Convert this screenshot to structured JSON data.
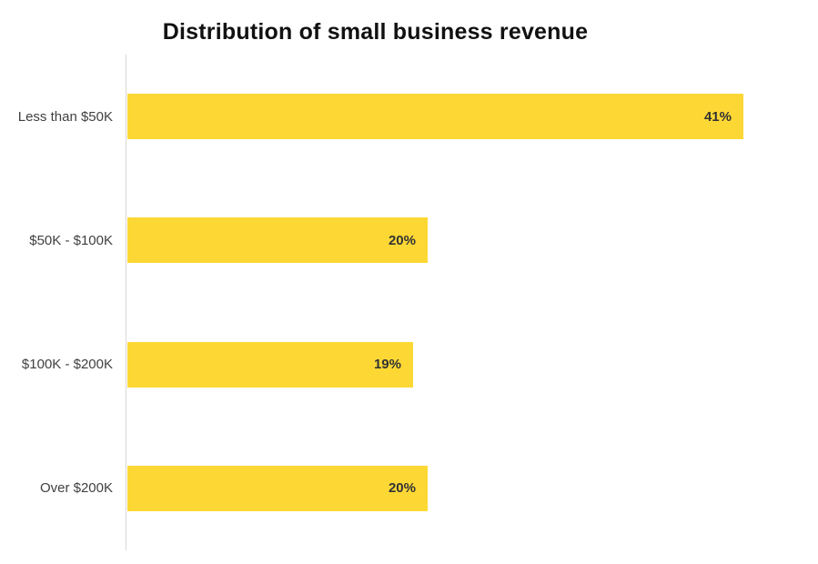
{
  "chart_data": {
    "type": "bar",
    "orientation": "horizontal",
    "title": "Distribution of small business revenue",
    "categories": [
      "Less than $50K",
      "$50K - $100K",
      "$100K - $200K",
      "Over $200K"
    ],
    "values": [
      41,
      20,
      19,
      20
    ],
    "value_labels": [
      "41%",
      "20%",
      "19%",
      "20%"
    ],
    "xlabel": "",
    "ylabel": "",
    "xlim": [
      0,
      46
    ],
    "grid": "off",
    "legend": "none",
    "value_label_position": "inside-end",
    "colors": {
      "bar": "#FDD835",
      "title": "#111111",
      "category_label": "#404040",
      "value_label": "#333333",
      "axis_line": "#d8d8d8",
      "background": "#ffffff"
    }
  }
}
